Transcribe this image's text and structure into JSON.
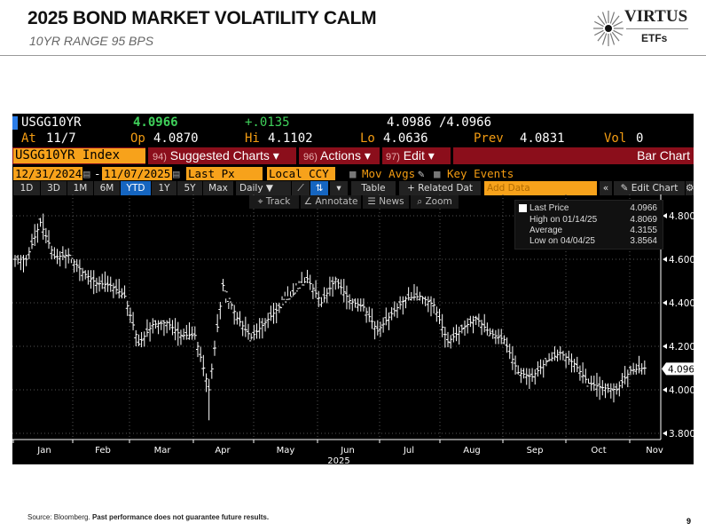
{
  "slide": {
    "title": "2025 BOND MARKET VOLATILITY CALM",
    "subtitle": "10YR RANGE 95 BPS",
    "logo_top": "VIRTUS",
    "logo_bottom": "ETFs",
    "source": "Source: Bloomberg.",
    "disclaimer": "Past performance does not guarantee future results.",
    "page": "9"
  },
  "terminal": {
    "ticker": "USGG10YR",
    "last": "4.0966",
    "change": "+.0135",
    "bid_ask": "4.0986 /4.0966",
    "at_label": "At",
    "at": "11/7",
    "op_label": "Op",
    "op": "4.0870",
    "hi_label": "Hi",
    "hi": "4.1102",
    "lo_label": "Lo",
    "lo": "4.0636",
    "prev_label": "Prev",
    "prev": "4.0831",
    "vol_label": "Vol",
    "vol": "0",
    "security": "USGG10YR Index",
    "suggested_num": "94)",
    "suggested": "Suggested Charts",
    "actions_num": "96)",
    "actions": "Actions",
    "edit_num": "97)",
    "edit": "Edit",
    "chart_type": "Bar Chart",
    "start_date": "12/31/2024",
    "end_date": "11/07/2025",
    "field": "Last Px",
    "currency": "Local CCY",
    "mov_avgs": "Mov Avgs",
    "key_events": "Key Events",
    "periods": [
      "1D",
      "3D",
      "1M",
      "6M",
      "YTD",
      "1Y",
      "5Y",
      "Max"
    ],
    "selected_period": "YTD",
    "frequency": "Daily",
    "table": "Table",
    "related": "+ Related Dat",
    "add_data_placeholder": "Add Data",
    "edit_chart": "Edit Chart",
    "tools": [
      "Track",
      "Annotate",
      "News",
      "Zoom"
    ]
  },
  "legend": [
    {
      "label": "Last Price",
      "value": "4.0966"
    },
    {
      "label": "High on 01/14/25",
      "value": "4.8069"
    },
    {
      "label": "Average",
      "value": "4.3155"
    },
    {
      "label": "Low on 04/04/25",
      "value": "3.8564"
    }
  ],
  "chart_data": {
    "type": "bar",
    "subtype": "ohlc-weekly-approx",
    "ylim": [
      3.75,
      4.88
    ],
    "yticks": [
      "4.8000",
      "4.6000",
      "4.4000",
      "4.2000",
      "4.0000",
      "3.8000"
    ],
    "ytick_values": [
      4.8,
      4.6,
      4.4,
      4.2,
      4.0,
      3.8
    ],
    "last_label": "4.0966",
    "last_value": 4.0966,
    "months": [
      "Jan",
      "Feb",
      "Mar",
      "Apr",
      "May",
      "Jun",
      "Jul",
      "Aug",
      "Sep",
      "Oct",
      "Nov"
    ],
    "year": "2025",
    "weeks": [
      "1/3",
      "1/10",
      "1/17",
      "1/24",
      "1/31",
      "2/7",
      "2/14",
      "2/21",
      "2/28",
      "3/7",
      "3/14",
      "3/21",
      "3/28",
      "4/4",
      "4/11",
      "4/18",
      "4/25",
      "5/2",
      "5/9",
      "5/16",
      "5/23",
      "5/30",
      "6/6",
      "6/13",
      "6/20",
      "6/27",
      "7/4",
      "7/11",
      "7/18",
      "7/25",
      "8/1",
      "8/8",
      "8/15",
      "8/22",
      "8/29",
      "9/5",
      "9/12",
      "9/19",
      "9/26",
      "10/3",
      "10/10",
      "10/17",
      "10/24",
      "10/31",
      "11/7"
    ],
    "high": [
      4.62,
      4.79,
      4.81,
      4.66,
      4.6,
      4.55,
      4.65,
      4.57,
      4.43,
      4.33,
      4.32,
      4.33,
      4.4,
      4.24,
      4.51,
      4.4,
      4.4,
      4.33,
      4.4,
      4.55,
      4.62,
      4.53,
      4.52,
      4.51,
      4.42,
      4.4,
      4.38,
      4.43,
      4.5,
      4.43,
      4.4,
      4.3,
      4.34,
      4.35,
      4.28,
      4.25,
      4.1,
      4.14,
      4.2,
      4.18,
      4.17,
      4.08,
      4.03,
      4.11,
      4.16
    ],
    "low": [
      4.53,
      4.6,
      4.6,
      4.55,
      4.5,
      4.42,
      4.45,
      4.42,
      4.2,
      4.1,
      4.16,
      4.2,
      4.23,
      3.86,
      3.93,
      4.3,
      4.23,
      4.13,
      4.28,
      4.43,
      4.49,
      4.38,
      4.34,
      4.31,
      4.36,
      4.23,
      4.23,
      4.33,
      4.41,
      4.33,
      4.19,
      4.19,
      4.21,
      4.25,
      4.21,
      4.07,
      4.0,
      4.0,
      4.13,
      4.08,
      4.03,
      3.95,
      3.94,
      3.97,
      4.07
    ],
    "close": [
      4.6,
      4.77,
      4.61,
      4.62,
      4.54,
      4.49,
      4.48,
      4.43,
      4.21,
      4.3,
      4.31,
      4.25,
      4.25,
      4.0,
      4.48,
      4.33,
      4.24,
      4.31,
      4.38,
      4.44,
      4.51,
      4.4,
      4.51,
      4.41,
      4.38,
      4.27,
      4.35,
      4.42,
      4.43,
      4.39,
      4.22,
      4.28,
      4.33,
      4.26,
      4.23,
      4.08,
      4.06,
      4.13,
      4.17,
      4.12,
      4.03,
      4.01,
      4.0,
      4.09,
      4.1
    ]
  }
}
